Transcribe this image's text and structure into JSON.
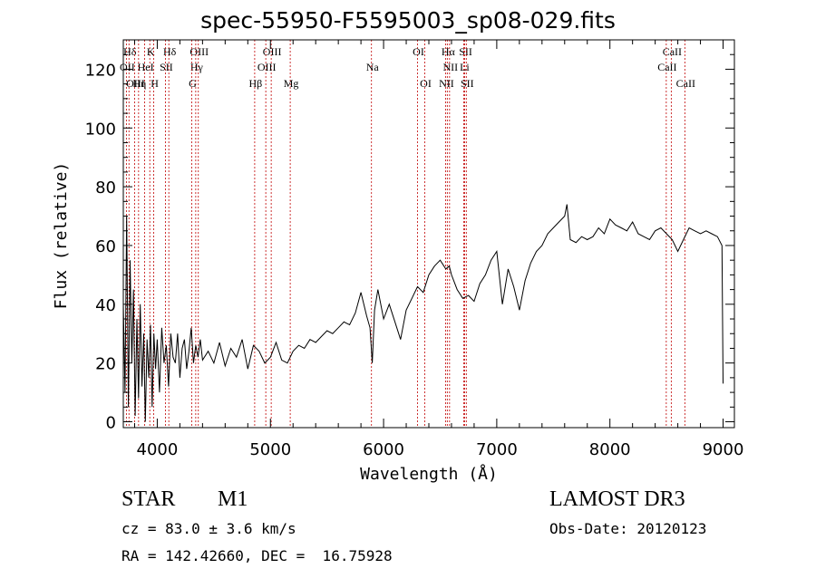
{
  "title": "spec-55950-F5595003_sp08-029.fits",
  "info": {
    "object_class": "STAR",
    "subclass": "M1",
    "survey": "LAMOST DR3",
    "redshift": "cz = 83.0 ± 3.6 km/s",
    "obs_date": "Obs-Date: 20120123",
    "coords": "RA = 142.42660, DEC =  16.75928"
  },
  "colors": {
    "spectrum": "#000000",
    "lines": "#c00000",
    "axes": "#000000"
  },
  "chart_data": {
    "type": "line",
    "title": "spec-55950-F5595003_sp08-029.fits",
    "xlabel": "Wavelength (Å)",
    "ylabel": "Flux (relative)",
    "xlim": [
      3700,
      9100
    ],
    "ylim": [
      -2,
      130
    ],
    "xticks": [
      4000,
      5000,
      6000,
      7000,
      8000,
      9000
    ],
    "yticks": [
      0,
      20,
      40,
      60,
      80,
      100,
      120
    ],
    "grid": false,
    "spectrum": {
      "x": [
        3700,
        3715,
        3730,
        3745,
        3760,
        3775,
        3790,
        3805,
        3820,
        3835,
        3850,
        3865,
        3880,
        3895,
        3910,
        3925,
        3940,
        3955,
        3970,
        3985,
        4000,
        4020,
        4040,
        4060,
        4080,
        4100,
        4120,
        4140,
        4160,
        4180,
        4200,
        4220,
        4240,
        4260,
        4280,
        4300,
        4320,
        4340,
        4360,
        4380,
        4400,
        4450,
        4500,
        4550,
        4600,
        4650,
        4700,
        4750,
        4800,
        4850,
        4900,
        4950,
        5000,
        5050,
        5100,
        5150,
        5200,
        5250,
        5300,
        5350,
        5400,
        5450,
        5500,
        5550,
        5600,
        5650,
        5700,
        5750,
        5800,
        5850,
        5880,
        5900,
        5920,
        5950,
        6000,
        6050,
        6100,
        6150,
        6200,
        6250,
        6300,
        6350,
        6400,
        6450,
        6500,
        6550,
        6580,
        6600,
        6650,
        6700,
        6750,
        6800,
        6850,
        6900,
        6950,
        7000,
        7050,
        7100,
        7150,
        7200,
        7250,
        7300,
        7350,
        7400,
        7450,
        7500,
        7550,
        7600,
        7620,
        7650,
        7700,
        7750,
        7800,
        7850,
        7900,
        7950,
        8000,
        8050,
        8100,
        8150,
        8200,
        8250,
        8300,
        8350,
        8400,
        8450,
        8500,
        8550,
        8600,
        8650,
        8700,
        8750,
        8800,
        8850,
        8900,
        8950,
        8990,
        9000
      ],
      "y": [
        40,
        10,
        70,
        5,
        55,
        20,
        45,
        2,
        35,
        8,
        40,
        12,
        30,
        0,
        28,
        15,
        33,
        5,
        30,
        18,
        28,
        10,
        32,
        20,
        26,
        12,
        30,
        22,
        20,
        30,
        15,
        25,
        28,
        18,
        24,
        32,
        20,
        26,
        22,
        28,
        21,
        24,
        20,
        27,
        19,
        25,
        22,
        28,
        18,
        26,
        24,
        20,
        22,
        27,
        21,
        20,
        24,
        26,
        25,
        28,
        27,
        29,
        31,
        30,
        32,
        34,
        33,
        37,
        44,
        36,
        32,
        20,
        38,
        45,
        35,
        40,
        34,
        28,
        38,
        42,
        46,
        44,
        50,
        53,
        55,
        52,
        53,
        50,
        45,
        42,
        43,
        41,
        47,
        50,
        55,
        58,
        40,
        52,
        46,
        38,
        48,
        54,
        58,
        60,
        64,
        66,
        68,
        70,
        74,
        62,
        61,
        63,
        62,
        63,
        66,
        64,
        69,
        67,
        66,
        65,
        68,
        64,
        63,
        62,
        65,
        66,
        64,
        62,
        58,
        62,
        66,
        65,
        64,
        65,
        64,
        63,
        60,
        13
      ]
    },
    "lines": [
      {
        "label": "Hδ",
        "x": 3750,
        "row": 1
      },
      {
        "label": "K",
        "x": 3934,
        "row": 1
      },
      {
        "label": "Hδ",
        "x": 4102,
        "row": 1
      },
      {
        "label": "OIII",
        "x": 4363,
        "row": 1
      },
      {
        "label": "OIII",
        "x": 5007,
        "row": 1
      },
      {
        "label": "OI",
        "x": 6300,
        "row": 1
      },
      {
        "label": "Hα",
        "x": 6563,
        "row": 1
      },
      {
        "label": "SII",
        "x": 6717,
        "row": 1
      },
      {
        "label": "CaII",
        "x": 8542,
        "row": 1
      },
      {
        "label": "OII",
        "x": 3727,
        "row": 2
      },
      {
        "label": "HeI",
        "x": 3889,
        "row": 2
      },
      {
        "label": "SII",
        "x": 4072,
        "row": 2
      },
      {
        "label": "Hγ",
        "x": 4340,
        "row": 2
      },
      {
        "label": "OIII",
        "x": 4959,
        "row": 2
      },
      {
        "label": "Na",
        "x": 5893,
        "row": 2
      },
      {
        "label": "NII",
        "x": 6583,
        "row": 2
      },
      {
        "label": "Li",
        "x": 6708,
        "row": 2
      },
      {
        "label": "CaII",
        "x": 8498,
        "row": 2
      },
      {
        "label": "OIII",
        "x": 3800,
        "row": 3
      },
      {
        "label": "Hη",
        "x": 3835,
        "row": 3
      },
      {
        "label": "H",
        "x": 3969,
        "row": 3
      },
      {
        "label": "G",
        "x": 4305,
        "row": 3
      },
      {
        "label": "Hβ",
        "x": 4861,
        "row": 3
      },
      {
        "label": "Mg",
        "x": 5175,
        "row": 3
      },
      {
        "label": "OI",
        "x": 6364,
        "row": 3
      },
      {
        "label": "NII",
        "x": 6548,
        "row": 3
      },
      {
        "label": "SII",
        "x": 6731,
        "row": 3
      },
      {
        "label": "CaII",
        "x": 8662,
        "row": 3
      }
    ]
  }
}
